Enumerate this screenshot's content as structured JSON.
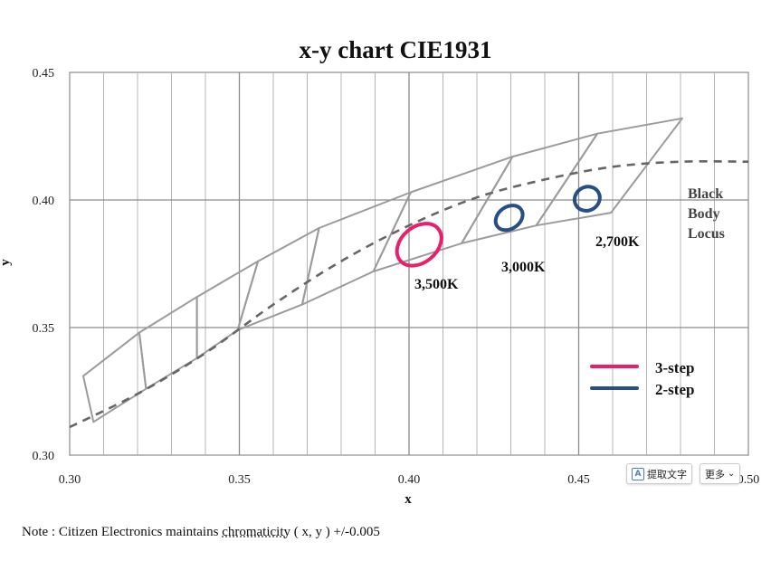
{
  "chart_data": {
    "type": "scatter",
    "title": "x-y chart  CIE1931",
    "xlabel": "x",
    "ylabel": "y",
    "xlim": [
      0.3,
      0.5
    ],
    "ylim": [
      0.3,
      0.45
    ],
    "x_ticks": [
      "0.30",
      "0.35",
      "0.40",
      "0.45",
      "0.50"
    ],
    "y_ticks": [
      "0.45",
      "0.40",
      "0.35",
      "0.30"
    ],
    "grid": true,
    "bins": [
      [
        [
          0.304,
          0.331
        ],
        [
          0.3205,
          0.348
        ],
        [
          0.3225,
          0.326
        ],
        [
          0.307,
          0.313
        ]
      ],
      [
        [
          0.3205,
          0.348
        ],
        [
          0.3375,
          0.362
        ],
        [
          0.3375,
          0.338
        ],
        [
          0.3225,
          0.326
        ]
      ],
      [
        [
          0.3375,
          0.362
        ],
        [
          0.3555,
          0.376
        ],
        [
          0.3495,
          0.349
        ],
        [
          0.3375,
          0.338
        ]
      ],
      [
        [
          0.3555,
          0.376
        ],
        [
          0.3735,
          0.389
        ],
        [
          0.3685,
          0.359
        ],
        [
          0.3495,
          0.349
        ]
      ],
      [
        [
          0.3735,
          0.389
        ],
        [
          0.4005,
          0.403
        ],
        [
          0.3895,
          0.372
        ],
        [
          0.3685,
          0.359
        ]
      ],
      [
        [
          0.4005,
          0.403
        ],
        [
          0.4305,
          0.417
        ],
        [
          0.4155,
          0.383
        ],
        [
          0.3895,
          0.372
        ]
      ],
      [
        [
          0.4305,
          0.417
        ],
        [
          0.4555,
          0.426
        ],
        [
          0.4375,
          0.39
        ],
        [
          0.4155,
          0.383
        ]
      ],
      [
        [
          0.4555,
          0.426
        ],
        [
          0.4805,
          0.432
        ],
        [
          0.4595,
          0.395
        ],
        [
          0.4375,
          0.39
        ]
      ]
    ],
    "locus": [
      [
        0.3,
        0.311
      ],
      [
        0.32,
        0.324
      ],
      [
        0.34,
        0.34
      ],
      [
        0.36,
        0.359
      ],
      [
        0.38,
        0.376
      ],
      [
        0.4,
        0.39
      ],
      [
        0.42,
        0.401
      ],
      [
        0.44,
        0.408
      ],
      [
        0.46,
        0.413
      ],
      [
        0.48,
        0.415
      ],
      [
        0.5,
        0.415
      ]
    ],
    "locus_label": [
      "Black",
      "Body",
      "Locus"
    ],
    "ellipses": [
      {
        "label": "3,500K",
        "cx": 0.403,
        "cy": 0.3825,
        "rx": 0.0073,
        "ry": 0.007,
        "angle": -40,
        "color": "#e8206b"
      },
      {
        "label": "3,000K",
        "cx": 0.4295,
        "cy": 0.393,
        "rx": 0.0043,
        "ry": 0.0043,
        "angle": -35,
        "color": "#284f85"
      },
      {
        "label": "2,700K",
        "cx": 0.4525,
        "cy": 0.4005,
        "rx": 0.0038,
        "ry": 0.0046,
        "angle": -30,
        "color": "#284f85"
      }
    ],
    "series": [
      {
        "name": "3-step",
        "color": "#e8206b"
      },
      {
        "name": "2-step",
        "color": "#284f85"
      }
    ],
    "legend_position": "bottom-right"
  },
  "note": {
    "prefix": "Note : Citizen Electronics maintains ",
    "chroma": "chromaticity",
    "suffix": " ( x, y ) +/-0.005"
  },
  "toolbar": {
    "extract_label": "提取文字",
    "more_label": "更多"
  },
  "colors": {
    "grid": "#b4b4b4",
    "grid_major": "#8c8c8c",
    "bin_outline": "#9b9b9b",
    "locus": "#666666"
  }
}
